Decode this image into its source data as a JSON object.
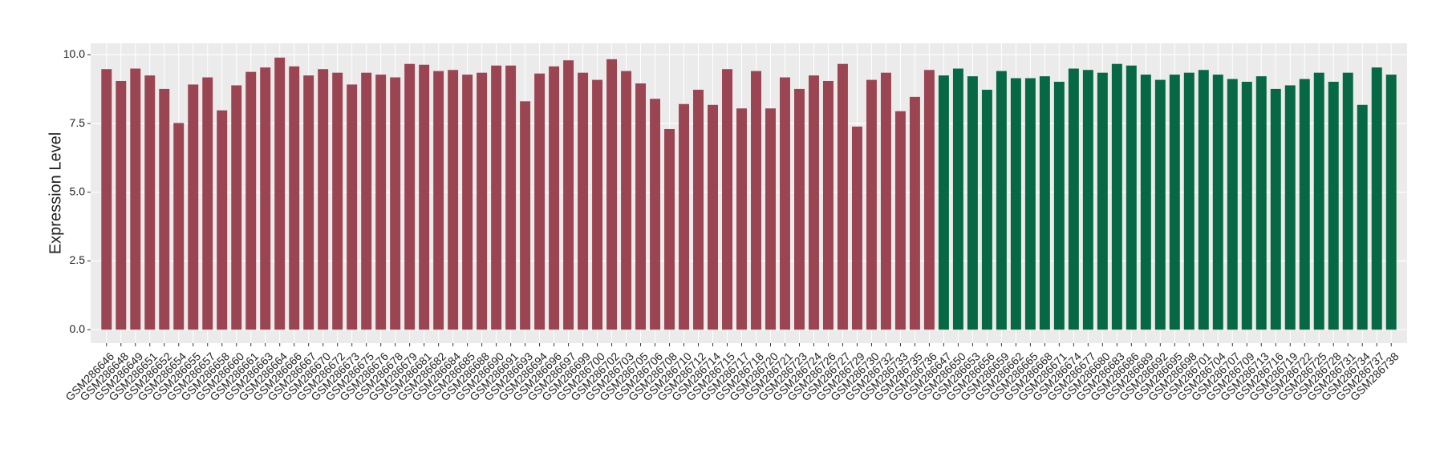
{
  "chart_data": {
    "type": "bar",
    "y_label": "Expression Level",
    "categories": [
      "GSM286646",
      "GSM286648",
      "GSM286649",
      "GSM286651",
      "GSM286652",
      "GSM286654",
      "GSM286655",
      "GSM286657",
      "GSM286658",
      "GSM286660",
      "GSM286661",
      "GSM286663",
      "GSM286664",
      "GSM286666",
      "GSM286667",
      "GSM286670",
      "GSM286672",
      "GSM286673",
      "GSM286675",
      "GSM286676",
      "GSM286678",
      "GSM286679",
      "GSM286681",
      "GSM286682",
      "GSM286684",
      "GSM286685",
      "GSM286688",
      "GSM286690",
      "GSM286691",
      "GSM286693",
      "GSM286694",
      "GSM286696",
      "GSM286697",
      "GSM286699",
      "GSM286700",
      "GSM286702",
      "GSM286703",
      "GSM286705",
      "GSM286706",
      "GSM286708",
      "GSM286710",
      "GSM286712",
      "GSM286714",
      "GSM286715",
      "GSM286717",
      "GSM286718",
      "GSM286720",
      "GSM286721",
      "GSM286723",
      "GSM286724",
      "GSM286726",
      "GSM286727",
      "GSM286729",
      "GSM286730",
      "GSM286732",
      "GSM286733",
      "GSM286735",
      "GSM286736",
      "GSM286647",
      "GSM286650",
      "GSM286653",
      "GSM286656",
      "GSM286659",
      "GSM286662",
      "GSM286665",
      "GSM286668",
      "GSM286671",
      "GSM286674",
      "GSM286677",
      "GSM286680",
      "GSM286683",
      "GSM286686",
      "GSM286689",
      "GSM286692",
      "GSM286695",
      "GSM286698",
      "GSM286701",
      "GSM286704",
      "GSM286707",
      "GSM286709",
      "GSM286713",
      "GSM286716",
      "GSM286719",
      "GSM286722",
      "GSM286725",
      "GSM286728",
      "GSM286731",
      "GSM286734",
      "GSM286737",
      "GSM286738"
    ],
    "values": [
      9.48,
      9.05,
      9.5,
      9.25,
      8.76,
      7.52,
      8.92,
      9.18,
      7.98,
      8.89,
      9.38,
      9.54,
      9.9,
      9.58,
      9.25,
      9.48,
      9.35,
      8.92,
      9.35,
      9.28,
      9.18,
      9.67,
      9.64,
      9.41,
      9.45,
      9.28,
      9.35,
      9.61,
      9.61,
      8.31,
      9.32,
      9.58,
      9.8,
      9.35,
      9.09,
      9.84,
      9.41,
      8.96,
      8.4,
      7.3,
      8.21,
      8.73,
      8.18,
      9.48,
      8.05,
      9.41,
      8.05,
      9.18,
      8.76,
      9.25,
      9.05,
      9.67,
      7.39,
      9.09,
      9.35,
      7.95,
      8.47,
      9.45,
      9.25,
      9.5,
      9.22,
      8.73,
      9.41,
      9.15,
      9.15,
      9.22,
      9.02,
      9.5,
      9.45,
      9.35,
      9.67,
      9.61,
      9.28,
      9.09,
      9.28,
      9.35,
      9.45,
      9.28,
      9.12,
      9.02,
      9.22,
      8.76,
      8.89,
      9.12,
      9.35,
      9.02,
      9.35,
      8.18,
      9.54,
      9.28
    ],
    "colors": [
      "#9b4552",
      "#9b4552",
      "#9b4552",
      "#9b4552",
      "#9b4552",
      "#9b4552",
      "#9b4552",
      "#9b4552",
      "#9b4552",
      "#9b4552",
      "#9b4552",
      "#9b4552",
      "#9b4552",
      "#9b4552",
      "#9b4552",
      "#9b4552",
      "#9b4552",
      "#9b4552",
      "#9b4552",
      "#9b4552",
      "#9b4552",
      "#9b4552",
      "#9b4552",
      "#9b4552",
      "#9b4552",
      "#9b4552",
      "#9b4552",
      "#9b4552",
      "#9b4552",
      "#9b4552",
      "#9b4552",
      "#9b4552",
      "#9b4552",
      "#9b4552",
      "#9b4552",
      "#9b4552",
      "#9b4552",
      "#9b4552",
      "#9b4552",
      "#9b4552",
      "#9b4552",
      "#9b4552",
      "#9b4552",
      "#9b4552",
      "#9b4552",
      "#9b4552",
      "#9b4552",
      "#9b4552",
      "#9b4552",
      "#9b4552",
      "#9b4552",
      "#9b4552",
      "#9b4552",
      "#9b4552",
      "#9b4552",
      "#9b4552",
      "#9b4552",
      "#9b4552",
      "#066845",
      "#066845",
      "#066845",
      "#066845",
      "#066845",
      "#066845",
      "#066845",
      "#066845",
      "#066845",
      "#066845",
      "#066845",
      "#066845",
      "#066845",
      "#066845",
      "#066845",
      "#066845",
      "#066845",
      "#066845",
      "#066845",
      "#066845",
      "#066845",
      "#066845",
      "#066845",
      "#066845",
      "#066845",
      "#066845",
      "#066845",
      "#066845",
      "#066845",
      "#066845",
      "#066845",
      "#066845"
    ],
    "ylim": [
      -0.49,
      10.42
    ],
    "yticks": [
      {
        "value": 0,
        "label": "0.0"
      },
      {
        "value": 2.5,
        "label": "2.5"
      },
      {
        "value": 5,
        "label": "5.0"
      },
      {
        "value": 7.5,
        "label": "7.5"
      },
      {
        "value": 10,
        "label": "10.0"
      }
    ],
    "grid": true
  }
}
